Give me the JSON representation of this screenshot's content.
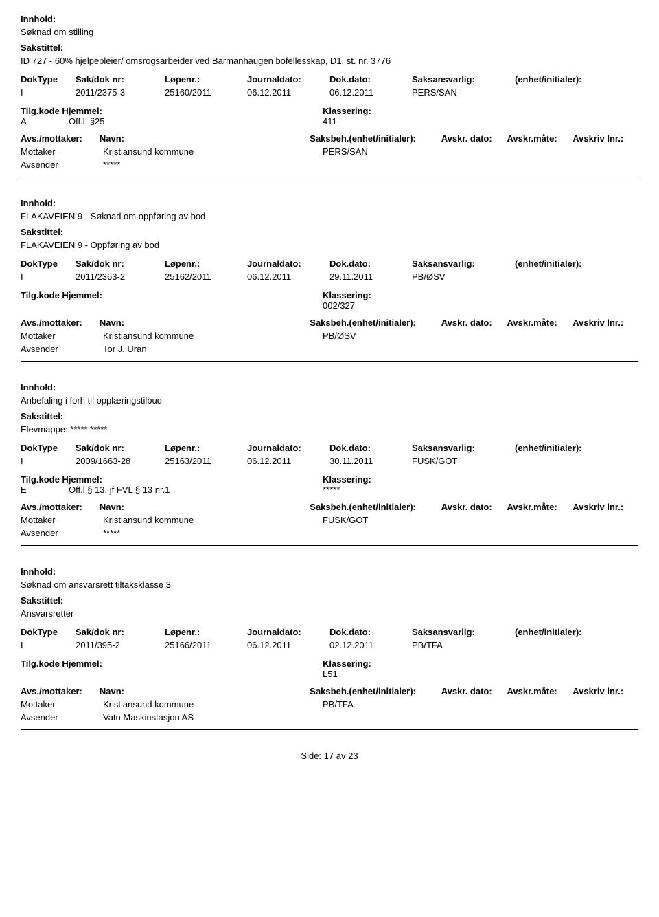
{
  "labels": {
    "innhold": "Innhold:",
    "sakstittel": "Sakstittel:",
    "doktype": "DokType",
    "sakdok": "Sak/dok nr:",
    "lopenr": "Løpenr.:",
    "journaldato": "Journaldato:",
    "dokdato": "Dok.dato:",
    "saksansvarlig": "Saksansvarlig:",
    "enhet": "(enhet/initialer):",
    "tilgkode": "Tilg.kode",
    "hjemmel": "Hjemmel:",
    "klassering": "Klassering:",
    "avsmottaker": "Avs./mottaker:",
    "navn": "Navn:",
    "saksbeh": "Saksbeh.(enhet/initialer):",
    "avskrdato": "Avskr. dato:",
    "avskrmaate": "Avskr.måte:",
    "avskrivlnr": "Avskriv lnr.:",
    "mottaker": "Mottaker",
    "avsender": "Avsender",
    "side": "Side:",
    "av": "av"
  },
  "footer": {
    "page": "17",
    "total": "23"
  },
  "records": [
    {
      "innhold": "Søknad om stilling",
      "sakstittel": "ID 727 - 60% hjelpepleier/ omsrogsarbeider ved Barmanhaugen bofellesskap, D1, st. nr. 3776",
      "doktype": "I",
      "sakdok": "2011/2375-3",
      "lopenr": "25160/2011",
      "journaldato": "06.12.2011",
      "dokdato": "06.12.2011",
      "saksansvarlig": "PERS/SAN",
      "tilg_a": "A",
      "hjemmel": "Off.l. §25",
      "klassering": "411",
      "mottaker_name": "Kristiansund kommune",
      "saksbeh_handler": "PERS/SAN",
      "avsender": "*****"
    },
    {
      "innhold": "FLAKAVEIEN 9 - Søknad om oppføring av bod",
      "sakstittel": "FLAKAVEIEN 9 - Oppføring av bod",
      "doktype": "I",
      "sakdok": "2011/2363-2",
      "lopenr": "25162/2011",
      "journaldato": "06.12.2011",
      "dokdato": "29.11.2011",
      "saksansvarlig": "PB/ØSV",
      "tilg_a": "",
      "hjemmel": "",
      "klassering": "002/327",
      "mottaker_name": "Kristiansund kommune",
      "saksbeh_handler": "PB/ØSV",
      "avsender": "Tor J. Uran"
    },
    {
      "innhold": "Anbefaling i forh til opplæringstilbud",
      "sakstittel": "Elevmappe: ***** *****",
      "doktype": "I",
      "sakdok": "2009/1663-28",
      "lopenr": "25163/2011",
      "journaldato": "06.12.2011",
      "dokdato": "30.11.2011",
      "saksansvarlig": "FUSK/GOT",
      "tilg_a": "E",
      "hjemmel": "Off.l § 13, jf FVL § 13 nr.1",
      "klassering": "*****",
      "mottaker_name": "Kristiansund kommune",
      "saksbeh_handler": "FUSK/GOT",
      "avsender": "*****"
    },
    {
      "innhold": "Søknad om ansvarsrett tiltaksklasse 3",
      "sakstittel": "Ansvarsretter",
      "doktype": "I",
      "sakdok": "2011/395-2",
      "lopenr": "25166/2011",
      "journaldato": "06.12.2011",
      "dokdato": "02.12.2011",
      "saksansvarlig": "PB/TFA",
      "tilg_a": "",
      "hjemmel": "",
      "klassering": "L51",
      "mottaker_name": "Kristiansund kommune",
      "saksbeh_handler": "PB/TFA",
      "avsender": "Vatn Maskinstasjon AS"
    }
  ]
}
